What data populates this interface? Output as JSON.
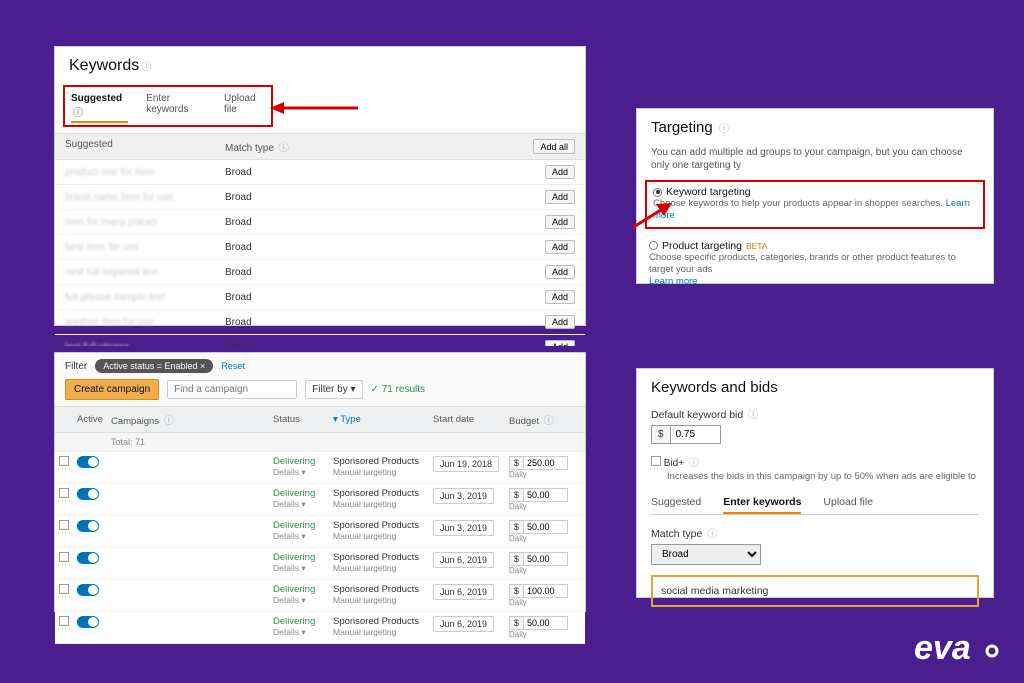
{
  "background": "#4a1e8f",
  "accent_red": "#d40000",
  "accent_orange": "#e88b00",
  "link_color": "#0073bb",
  "panel1": {
    "title": "Keywords",
    "tabs": [
      "Suggested",
      "Enter keywords",
      "Upload file"
    ],
    "active_tab": 0,
    "list_header_col1": "Suggested",
    "list_header_col2": "Match type",
    "add_all_label": "Add all",
    "add_label": "Add",
    "match_type_value": "Broad",
    "rows": [
      {
        "kw": "product one for item"
      },
      {
        "kw": "brand name item for use"
      },
      {
        "kw": "item for many places"
      },
      {
        "kw": "best item for use"
      },
      {
        "kw": "next full keyword text"
      },
      {
        "kw": "full phrase sample text"
      },
      {
        "kw": "another item for use"
      },
      {
        "kw": "last full phrase"
      },
      {
        "kw": "extra sample phrase"
      }
    ]
  },
  "panel2": {
    "title": "Targeting",
    "desc": "You can add multiple ad groups to your campaign, but you can choose only one targeting ty",
    "opt1_title": "Keyword targeting",
    "opt1_desc": "Choose keywords to help your products appear in shopper searches.",
    "opt2_title": "Product targeting",
    "beta": "BETA",
    "opt2_desc": "Choose specific products, categories, brands or other product features to target your ads",
    "learn_more": "Learn more"
  },
  "panel3": {
    "filter_label": "Filter",
    "chip": "Active status = Enabled ×",
    "reset": "Reset",
    "create_label": "Create campaign",
    "search_placeholder": "Find a campaign",
    "filterby": "Filter by",
    "results": "71 results",
    "cols": [
      "",
      "Active",
      "Campaigns",
      "Status",
      "Type",
      "Start date",
      "Budget"
    ],
    "sort_col": "Type",
    "totals_label": "Total: 71",
    "status_value": "Delivering",
    "details_label": "Details",
    "type_line1": "Sponsored Products",
    "type_line2": "Manual targeting",
    "daily_label": "Daily",
    "rows": [
      {
        "date": "Jun 19, 2018",
        "budget": "250.00"
      },
      {
        "date": "Jun 3, 2019",
        "budget": "50.00"
      },
      {
        "date": "Jun 3, 2019",
        "budget": "50.00"
      },
      {
        "date": "Jun 6, 2019",
        "budget": "50.00"
      },
      {
        "date": "Jun 6, 2019",
        "budget": "100.00"
      },
      {
        "date": "Jun 6, 2019",
        "budget": "50.00"
      }
    ]
  },
  "panel4": {
    "title": "Keywords and bids",
    "default_bid_label": "Default keyword bid",
    "bid_value": "0.75",
    "bidplus_label": "Bid+",
    "bidplus_desc": "Increases the bids in this campaign by up to 50% when ads are eligible to",
    "tabs": [
      "Suggested",
      "Enter keywords",
      "Upload file"
    ],
    "active_tab": 1,
    "match_type_label": "Match type",
    "match_type_value": "Broad",
    "keyword_text": "social media marketing"
  },
  "logo_text": "eva"
}
